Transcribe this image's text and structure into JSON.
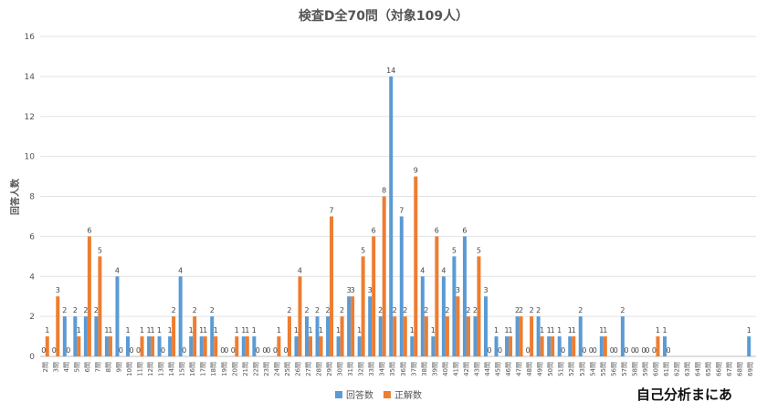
{
  "chart_data": {
    "type": "bar",
    "title": "検査D全70問（対象109人）",
    "xlabel": "",
    "ylabel": "回答人数",
    "ylim": [
      0,
      16
    ],
    "yticks": [
      0,
      2,
      4,
      6,
      8,
      10,
      12,
      14,
      16
    ],
    "grid": true,
    "legend_position": "bottom",
    "categories": [
      "2問",
      "3問",
      "4問",
      "5問",
      "6問",
      "7問",
      "8問",
      "9問",
      "10問",
      "11問",
      "12問",
      "13問",
      "14問",
      "15問",
      "16問",
      "17問",
      "18問",
      "19問",
      "20問",
      "21問",
      "22問",
      "23問",
      "24問",
      "25問",
      "26問",
      "27問",
      "28問",
      "29問",
      "30問",
      "31問",
      "32問",
      "33問",
      "34問",
      "35問",
      "36問",
      "37問",
      "38問",
      "39問",
      "40問",
      "41問",
      "42問",
      "43問",
      "44問",
      "45問",
      "46問",
      "47問",
      "48問",
      "49問",
      "50問",
      "51問",
      "52問",
      "53問",
      "54問",
      "55問",
      "56問",
      "57問",
      "58問",
      "59問",
      "60問",
      "61問",
      "62問",
      "63問",
      "64問",
      "65問",
      "66問",
      "67問",
      "68問",
      "69問"
    ],
    "series": [
      {
        "name": "回答数",
        "color": "#5b9bd5",
        "values": [
          0,
          0,
          2,
          2,
          2,
          2,
          1,
          4,
          1,
          0,
          1,
          1,
          1,
          4,
          1,
          1,
          2,
          0,
          0,
          1,
          1,
          0,
          0,
          0,
          1,
          2,
          2,
          2,
          1,
          3,
          1,
          3,
          2,
          14,
          7,
          1,
          4,
          1,
          4,
          5,
          6,
          2,
          3,
          1,
          1,
          2,
          0,
          2,
          1,
          1,
          1,
          2,
          0,
          1,
          0,
          2,
          0,
          0,
          0,
          1,
          0,
          0,
          0,
          0,
          0,
          0,
          0,
          1
        ]
      },
      {
        "name": "正解数",
        "color": "#ed7d31",
        "values": [
          1,
          3,
          0,
          1,
          6,
          5,
          1,
          0,
          0,
          1,
          1,
          0,
          2,
          0,
          2,
          1,
          1,
          0,
          1,
          1,
          0,
          0,
          1,
          2,
          4,
          1,
          1,
          7,
          2,
          3,
          5,
          6,
          8,
          2,
          2,
          9,
          2,
          6,
          2,
          3,
          2,
          5,
          0,
          0,
          1,
          2,
          2,
          1,
          1,
          0,
          1,
          0,
          0,
          1,
          0,
          0,
          0,
          0,
          1,
          0,
          0,
          0,
          0,
          0,
          0,
          0,
          0,
          0
        ]
      }
    ]
  },
  "watermark": "自己分析まにあ"
}
